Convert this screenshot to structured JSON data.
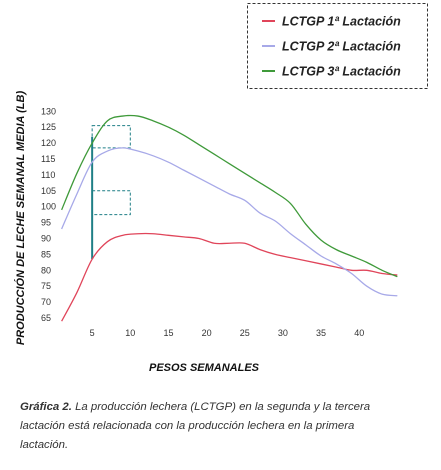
{
  "chart_data": {
    "type": "line",
    "title": "",
    "xlabel": "PESOS SEMANALES",
    "ylabel": "PRODUCCIÓN DE LECHE SEMANAL MEDIA (LB)",
    "xlim": [
      0,
      46
    ],
    "ylim": [
      62,
      131
    ],
    "xticks": [
      5,
      10,
      15,
      20,
      25,
      30,
      35,
      40
    ],
    "yticks": [
      65,
      70,
      75,
      80,
      85,
      90,
      95,
      100,
      105,
      110,
      115,
      120,
      125,
      130
    ],
    "grid": false,
    "legend_position": "top-right",
    "series": [
      {
        "name": "LCTGP 1ª Lactación",
        "color": "#e0455a",
        "x": [
          1,
          3,
          5,
          7,
          9,
          11,
          13,
          15,
          17,
          19,
          21,
          23,
          25,
          27,
          29,
          31,
          33,
          35,
          37,
          39,
          41,
          43,
          45
        ],
        "y": [
          64,
          73,
          83.5,
          89,
          91,
          91.5,
          91.5,
          91,
          90.5,
          90,
          88.5,
          88.5,
          88.5,
          86.5,
          85,
          84,
          83,
          82,
          81,
          80,
          80,
          79,
          78.5
        ]
      },
      {
        "name": "LCTGP 2ª Lactación",
        "color": "#a7a9e8",
        "x": [
          1,
          3,
          5,
          7,
          9,
          11,
          13,
          15,
          17,
          19,
          21,
          23,
          25,
          27,
          29,
          31,
          33,
          35,
          37,
          39,
          41,
          43,
          45
        ],
        "y": [
          93,
          104,
          114,
          117.5,
          118.5,
          117.5,
          116,
          114,
          111.5,
          109,
          106.5,
          104,
          102,
          98,
          95.5,
          91.5,
          88,
          84.5,
          82,
          79,
          75,
          72.5,
          72
        ]
      },
      {
        "name": "LCTGP 3ª Lactación",
        "color": "#3f9a3a",
        "x": [
          1,
          3,
          5,
          7,
          9,
          11,
          13,
          15,
          17,
          19,
          21,
          23,
          25,
          27,
          29,
          31,
          33,
          35,
          37,
          39,
          41,
          43,
          45
        ],
        "y": [
          99,
          110.5,
          120,
          127,
          128.5,
          128.5,
          127,
          125,
          122.5,
          119.5,
          116.5,
          113.5,
          110.5,
          107.5,
          104.5,
          101,
          94.5,
          89.5,
          86.5,
          84.5,
          82.5,
          80,
          78
        ]
      }
    ],
    "annotations": {
      "marker_x": 5,
      "marker_color": "#1f7f86",
      "marker_from": 83.5,
      "marker_to": 122,
      "boxes": [
        {
          "x": [
            5,
            10
          ],
          "y": [
            118.5,
            125.5
          ]
        },
        {
          "x": [
            5,
            10
          ],
          "y": [
            97.5,
            105
          ]
        }
      ]
    }
  },
  "caption": {
    "label": "Gráfica 2.",
    "text": "La producción lechera (LCTGP) en la segunda y la tercera lactación está relacionada con la producción  lechera en la primera lactación."
  }
}
